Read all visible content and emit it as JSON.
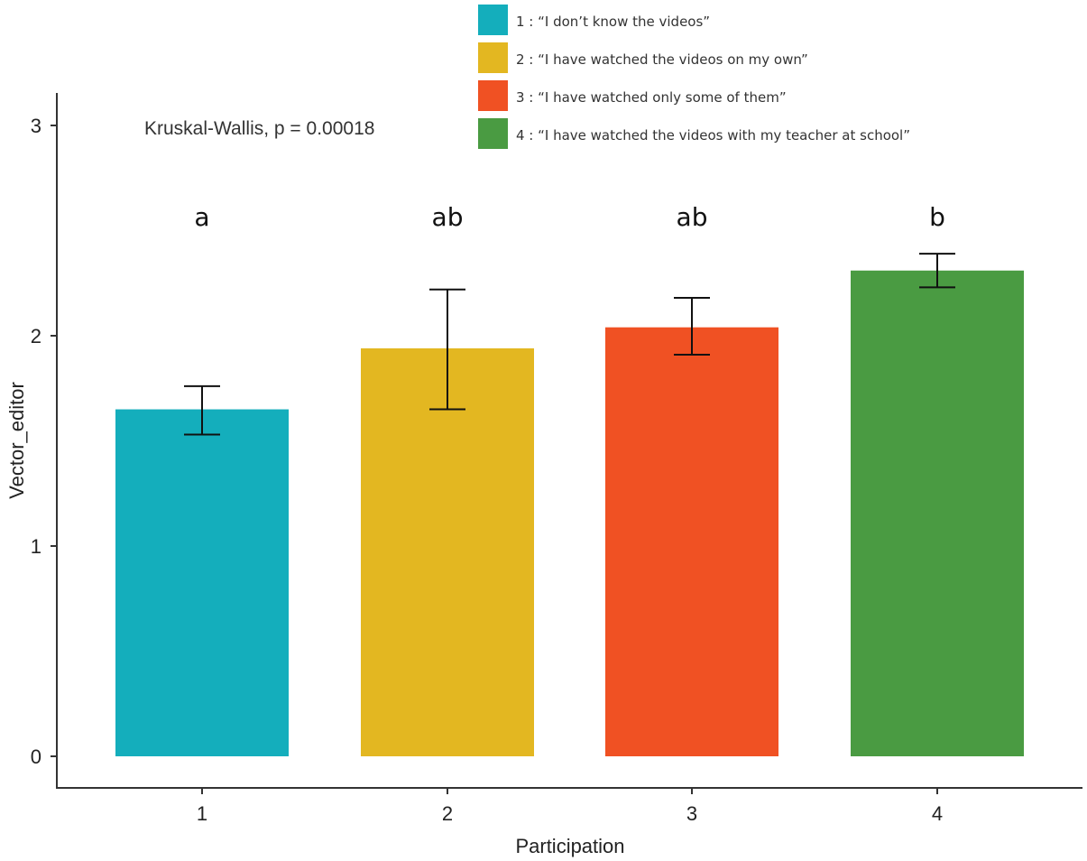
{
  "chart_data": {
    "type": "bar",
    "title": "",
    "xlabel": "Participation",
    "ylabel": "Vector_editor",
    "categories": [
      "1",
      "2",
      "3",
      "4"
    ],
    "values": [
      1.65,
      1.94,
      2.04,
      2.31
    ],
    "error_bars": [
      {
        "low": 1.53,
        "high": 1.76
      },
      {
        "low": 1.65,
        "high": 2.22
      },
      {
        "low": 1.91,
        "high": 2.18
      },
      {
        "low": 2.23,
        "high": 2.39
      }
    ],
    "significance_letters": [
      "a",
      "ab",
      "ab",
      "b"
    ],
    "colors": [
      "#14aebc",
      "#e3b721",
      "#f05123",
      "#4a9b42"
    ],
    "ylim": [
      -0.15,
      3.15
    ],
    "yticks": [
      0,
      1,
      2,
      3
    ],
    "grid": false,
    "annotation": "Kruskal-Wallis, p = 0.00018",
    "legend": {
      "placement": "top-right",
      "entries": [
        {
          "key": "1",
          "label": "1 : “I don’t know the videos”"
        },
        {
          "key": "2",
          "label": "2 : “I have watched the videos on my own”"
        },
        {
          "key": "3",
          "label": "3 : “I have watched only some of them”"
        },
        {
          "key": "4",
          "label": "4 : “I have watched the videos with my teacher at school”"
        }
      ]
    }
  }
}
